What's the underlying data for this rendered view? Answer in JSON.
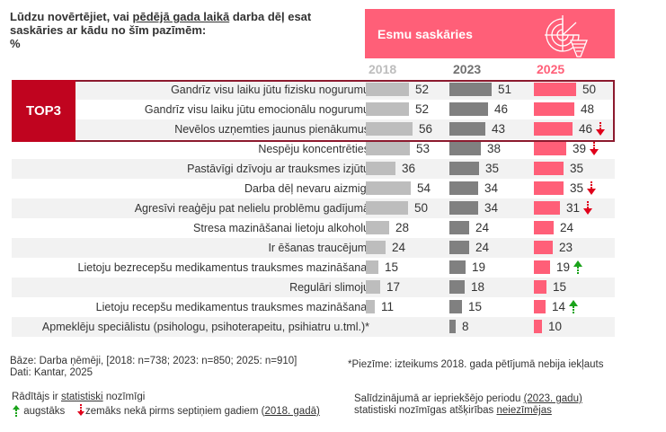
{
  "question": {
    "part1": "Lūdzu novērtējiet, vai ",
    "underlined": "pēdējā gada laikā",
    "part2": " darba dēļ esat saskāries ar kādu no šīm pazīmēm:",
    "unit": "%"
  },
  "header": {
    "title": "Esmu saskāries",
    "icon": "radar-tornado-icon",
    "color": "#ff5f78"
  },
  "top3_label": "TOP3",
  "colors": {
    "y2018": "#bdbdbd",
    "y2023": "#808080",
    "y2025": "#ff5f78",
    "arrow_down": "#e0001b",
    "arrow_up": "#1aa31a",
    "top3_fill": "#c0041f",
    "top3_border": "#8c1a2e"
  },
  "chart_data": {
    "type": "bar",
    "orientation": "horizontal",
    "title": "Esmu saskāries",
    "unit": "%",
    "series_names": [
      "2018",
      "2023",
      "2025"
    ],
    "categories": [
      "Gandrīz visu laiku jūtu fizisku nogurumu",
      "Gandrīz visu laiku jūtu emocionālu nogurumu",
      "Nevēlos uzņemties jaunus pienākumus",
      "Nespēju koncentrēties",
      "Pastāvīgi dzīvoju ar trauksmes izjūtu",
      "Darba dēļ nevaru aizmigt",
      "Agresīvi reaģēju pat nelielu problēmu gadījumā",
      "Stresa mazināšanai lietoju alkoholu",
      "Ir ēšanas traucējumi",
      "Lietoju bezrecepšu medikamentus trauksmes mazināšanai",
      "Regulāri slimoju",
      "Lietoju recepšu medikamentus trauksmes mazināšanai",
      "Apmeklēju speciālistu (psihologu, psihoterapeitu, psihiatru u.tml.)*"
    ],
    "series": [
      {
        "name": "2018",
        "values": [
          52,
          52,
          56,
          53,
          36,
          54,
          50,
          28,
          24,
          15,
          17,
          11,
          null
        ]
      },
      {
        "name": "2023",
        "values": [
          51,
          46,
          43,
          38,
          35,
          34,
          34,
          24,
          24,
          19,
          18,
          15,
          8
        ]
      },
      {
        "name": "2025",
        "values": [
          50,
          48,
          46,
          39,
          35,
          35,
          31,
          24,
          23,
          19,
          15,
          14,
          10
        ]
      }
    ],
    "significance_vs_2018": [
      null,
      null,
      "down",
      "down",
      null,
      "down",
      "down",
      null,
      null,
      "up",
      null,
      "up",
      null
    ],
    "top3_rows": [
      0,
      1,
      2
    ],
    "xlim": [
      0,
      100
    ]
  },
  "footer": {
    "base": "Bāze: Darba ņēmēji, [2018: n=738; 2023: n=850; 2025: n=910]",
    "source": "Dati: Kantar, 2025",
    "note": "*Piezīme: izteikums 2018. gada pētījumā nebija iekļauts",
    "legend_title_pre": "Rādītājs ir ",
    "legend_title_u": "statistiski",
    "legend_title_post": " nozīmīgi",
    "legend_up": "augstāks",
    "legend_down_pre": "zemāks nekā pirms septiņiem gadiem (",
    "legend_down_u": "2018. gadā)",
    "comparison_line1_pre": "Salīdzinājumā ar iepriekšējo periodu ",
    "comparison_line1_u": "(2023. gadu)",
    "comparison_line2_pre": "statistiski nozīmīgas atšķirības ",
    "comparison_line2_u": "neiezīmējas"
  }
}
